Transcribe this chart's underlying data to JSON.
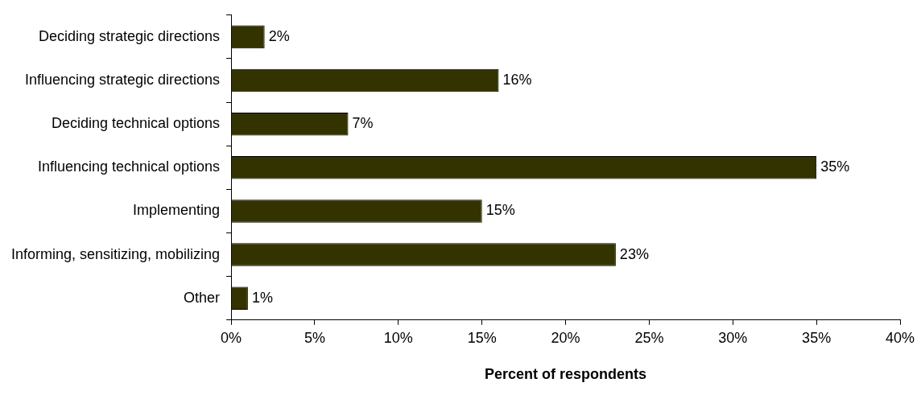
{
  "chart_data": {
    "type": "bar",
    "orientation": "horizontal",
    "xlabel": "Percent of respondents",
    "categories": [
      "Deciding strategic directions",
      "Influencing strategic directions",
      "Deciding technical options",
      "Influencing technical options",
      "Implementing",
      "Informing, sensitizing, mobilizing",
      "Other"
    ],
    "values": [
      2,
      16,
      7,
      35,
      15,
      23,
      1
    ],
    "value_labels": [
      "2%",
      "16%",
      "7%",
      "35%",
      "15%",
      "23%",
      "1%"
    ],
    "color": "#333300",
    "xlim": [
      0,
      40
    ],
    "xticks": [
      {
        "value": 0,
        "label": "0%"
      },
      {
        "value": 5,
        "label": "5%"
      },
      {
        "value": 10,
        "label": "10%"
      },
      {
        "value": 15,
        "label": "15%"
      },
      {
        "value": 20,
        "label": "20%"
      },
      {
        "value": 25,
        "label": "25%"
      },
      {
        "value": 30,
        "label": "30%"
      },
      {
        "value": 35,
        "label": "35%"
      },
      {
        "value": 40,
        "label": "40%"
      }
    ],
    "grid": false,
    "legend": false
  }
}
